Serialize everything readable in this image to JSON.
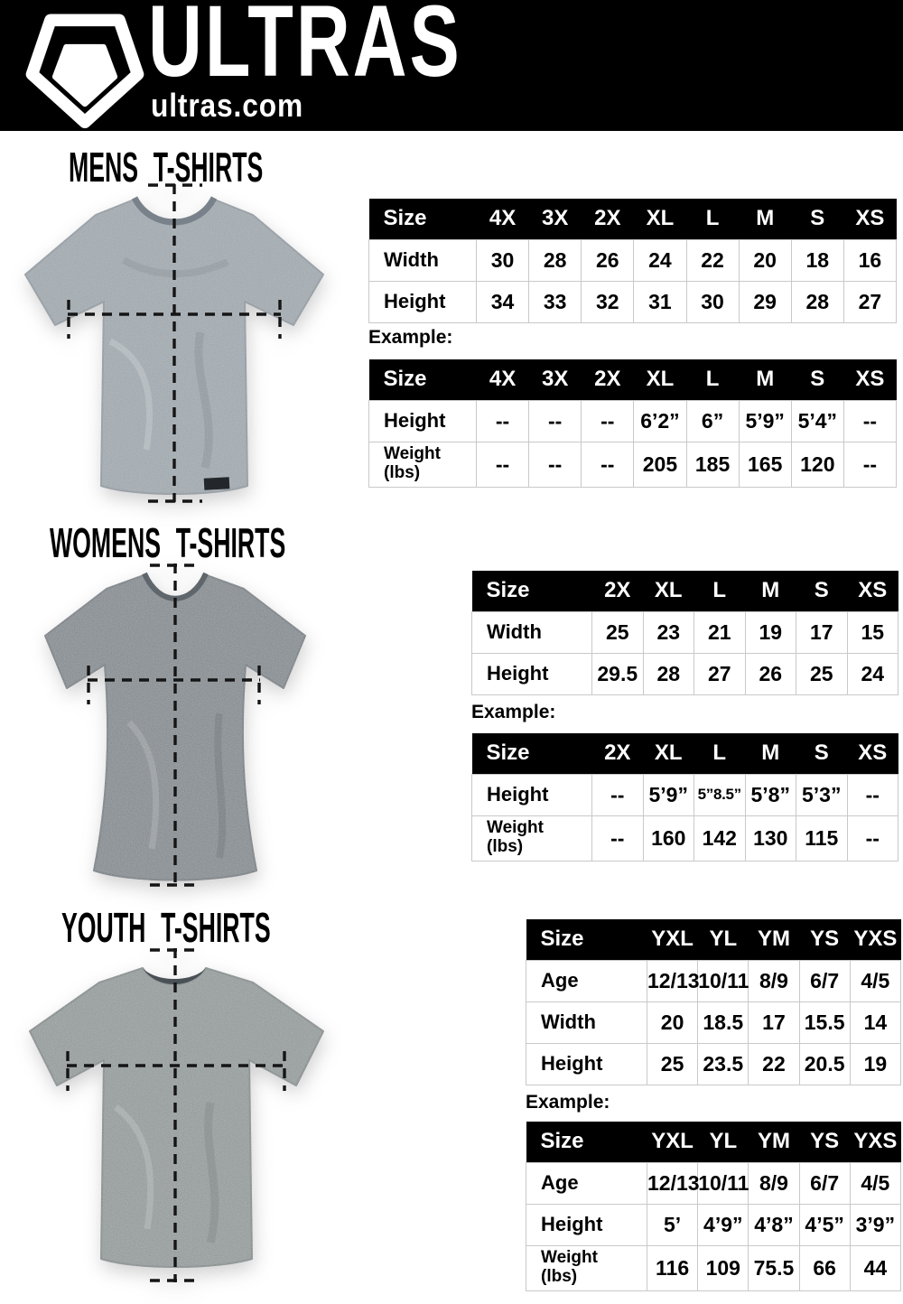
{
  "header": {
    "brand": "ULTRAS",
    "site": "ultras.com",
    "logo_icon": "pentagon-crest"
  },
  "colors": {
    "page_bg": "#ffffff",
    "header_bg": "#000000",
    "table_header_bg": "#000000",
    "table_header_text": "#ffffff",
    "table_border": "#c9c9c9",
    "text": "#000000",
    "shirt_mens": "#9aa3a9",
    "shirt_womens": "#7c8388",
    "shirt_youth": "#8d9494"
  },
  "sections": {
    "mens": {
      "title": "MENS T-SHIRTS",
      "example_label": "Example:",
      "size_table": {
        "columns": [
          "Size",
          "4X",
          "3X",
          "2X",
          "XL",
          "L",
          "M",
          "S",
          "XS"
        ],
        "rows": [
          {
            "label": "Width",
            "values": [
              "30",
              "28",
              "26",
              "24",
              "22",
              "20",
              "18",
              "16"
            ]
          },
          {
            "label": "Height",
            "values": [
              "34",
              "33",
              "32",
              "31",
              "30",
              "29",
              "28",
              "27"
            ]
          }
        ]
      },
      "example_table": {
        "columns": [
          "Size",
          "4X",
          "3X",
          "2X",
          "XL",
          "L",
          "M",
          "S",
          "XS"
        ],
        "rows": [
          {
            "label": "Height",
            "values": [
              "--",
              "--",
              "--",
              "6’2”",
              "6”",
              "5’9”",
              "5’4”",
              "--"
            ]
          },
          {
            "label": "Weight\n(lbs)",
            "values": [
              "--",
              "--",
              "--",
              "205",
              "185",
              "165",
              "120",
              "--"
            ]
          }
        ]
      }
    },
    "womens": {
      "title": "WOMENS T-SHIRTS",
      "example_label": "Example:",
      "size_table": {
        "columns": [
          "Size",
          "2X",
          "XL",
          "L",
          "M",
          "S",
          "XS"
        ],
        "rows": [
          {
            "label": "Width",
            "values": [
              "25",
              "23",
              "21",
              "19",
              "17",
              "15"
            ]
          },
          {
            "label": "Height",
            "values": [
              "29.5",
              "28",
              "27",
              "26",
              "25",
              "24"
            ]
          }
        ]
      },
      "example_table": {
        "columns": [
          "Size",
          "2X",
          "XL",
          "L",
          "M",
          "S",
          "XS"
        ],
        "rows": [
          {
            "label": "Height",
            "values": [
              "--",
              "5’9”",
              "5”8.5”",
              "5’8”",
              "5’3”",
              "--"
            ]
          },
          {
            "label": "Weight\n(lbs)",
            "values": [
              "--",
              "160",
              "142",
              "130",
              "115",
              "--"
            ]
          }
        ]
      }
    },
    "youth": {
      "title": "YOUTH T-SHIRTS",
      "example_label": "Example:",
      "size_table": {
        "columns": [
          "Size",
          "YXL",
          "YL",
          "YM",
          "YS",
          "YXS"
        ],
        "rows": [
          {
            "label": "Age",
            "values": [
              "12/13",
              "10/11",
              "8/9",
              "6/7",
              "4/5"
            ]
          },
          {
            "label": "Width",
            "values": [
              "20",
              "18.5",
              "17",
              "15.5",
              "14"
            ]
          },
          {
            "label": "Height",
            "values": [
              "25",
              "23.5",
              "22",
              "20.5",
              "19"
            ]
          }
        ]
      },
      "example_table": {
        "columns": [
          "Size",
          "YXL",
          "YL",
          "YM",
          "YS",
          "YXS"
        ],
        "rows": [
          {
            "label": "Age",
            "values": [
              "12/13",
              "10/11",
              "8/9",
              "6/7",
              "4/5"
            ]
          },
          {
            "label": "Height",
            "values": [
              "5’",
              "4’9”",
              "4’8”",
              "4’5”",
              "3’9”"
            ]
          },
          {
            "label": "Weight\n(lbs)",
            "values": [
              "116",
              "109",
              "75.5",
              "66",
              "44"
            ]
          }
        ]
      }
    }
  }
}
